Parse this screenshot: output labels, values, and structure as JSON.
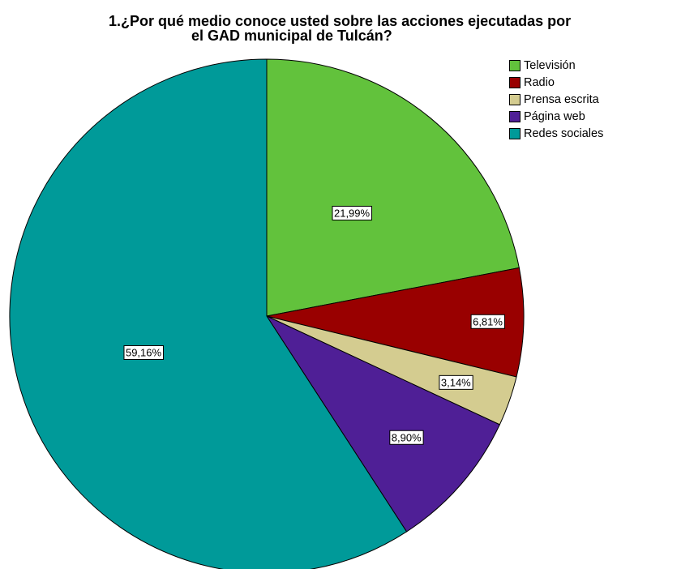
{
  "chart_data": {
    "type": "pie",
    "title_line1": "1.¿Por qué medio conoce usted sobre las acciones ejecutadas por",
    "title_line2": "el GAD municipal de Tulcán?",
    "slices": [
      {
        "name": "Televisión",
        "value": 21.99,
        "label": "21,99%",
        "color": "#62c23c"
      },
      {
        "name": "Radio",
        "value": 6.81,
        "label": "6,81%",
        "color": "#990000"
      },
      {
        "name": "Prensa escrita",
        "value": 3.14,
        "label": "3,14%",
        "color": "#d4cc90"
      },
      {
        "name": "Página web",
        "value": 8.9,
        "label": "8,90%",
        "color": "#4f1f96"
      },
      {
        "name": "Redes sociales",
        "value": 59.16,
        "label": "59,16%",
        "color": "#009a99"
      }
    ],
    "legend_placement": "top-right",
    "start_angle": "12 o'clock",
    "direction": "clockwise"
  }
}
